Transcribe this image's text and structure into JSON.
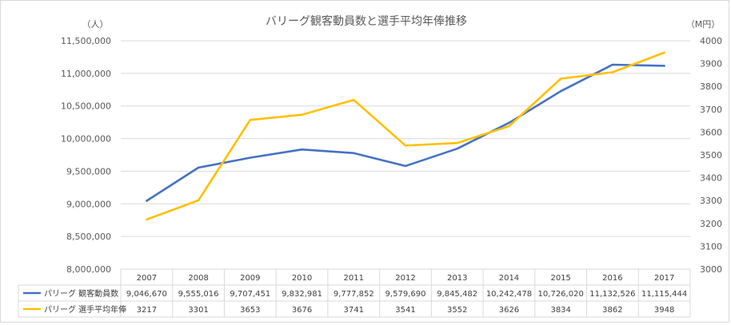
{
  "chart_data": {
    "type": "line",
    "title": "バリーグ観客動員数と選手平均年俸推移",
    "y_left_unit": "（人）",
    "y_right_unit": "（M円）",
    "categories": [
      "2007",
      "2008",
      "2009",
      "2010",
      "2011",
      "2012",
      "2013",
      "2014",
      "2015",
      "2016",
      "2017"
    ],
    "ylim_left": [
      8000000,
      11500000
    ],
    "ylim_right": [
      3000,
      4000
    ],
    "left_ticks": [
      {
        "v": 8000000,
        "label": "8,000,000"
      },
      {
        "v": 8500000,
        "label": "8,500,000"
      },
      {
        "v": 9000000,
        "label": "9,000,000"
      },
      {
        "v": 9500000,
        "label": "9,500,000"
      },
      {
        "v": 10000000,
        "label": "10,000,000"
      },
      {
        "v": 10500000,
        "label": "10,500,000"
      },
      {
        "v": 11000000,
        "label": "11,000,000"
      },
      {
        "v": 11500000,
        "label": "11,500,000"
      }
    ],
    "right_ticks": [
      {
        "v": 3000,
        "label": "3000"
      },
      {
        "v": 3100,
        "label": "3100"
      },
      {
        "v": 3200,
        "label": "3200"
      },
      {
        "v": 3300,
        "label": "3300"
      },
      {
        "v": 3400,
        "label": "3400"
      },
      {
        "v": 3500,
        "label": "3500"
      },
      {
        "v": 3600,
        "label": "3600"
      },
      {
        "v": 3700,
        "label": "3700"
      },
      {
        "v": 3800,
        "label": "3800"
      },
      {
        "v": 3900,
        "label": "3900"
      },
      {
        "v": 4000,
        "label": "4000"
      }
    ],
    "grid": true,
    "legend": "data-table",
    "series": [
      {
        "name": "パリーグ 観客動員数",
        "axis": "left",
        "color": "#4472c4",
        "values": [
          9046670,
          9555016,
          9707451,
          9832981,
          9777852,
          9579690,
          9845482,
          10242478,
          10726020,
          11132526,
          11115444
        ],
        "labels": [
          "9,046,670",
          "9,555,016",
          "9,707,451",
          "9,832,981",
          "9,777,852",
          "9,579,690",
          "9,845,482",
          "10,242,478",
          "10,726,020",
          "11,132,526",
          "11,115,444"
        ]
      },
      {
        "name": "パリーグ 選手平均年俸",
        "axis": "right",
        "color": "#ffc000",
        "values": [
          3217,
          3301,
          3653,
          3676,
          3741,
          3541,
          3552,
          3626,
          3834,
          3862,
          3948
        ],
        "labels": [
          "3217",
          "3301",
          "3653",
          "3676",
          "3741",
          "3541",
          "3552",
          "3626",
          "3834",
          "3862",
          "3948"
        ]
      }
    ]
  }
}
